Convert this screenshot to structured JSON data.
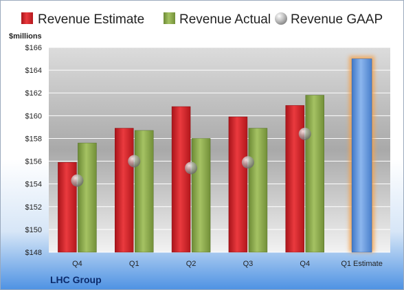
{
  "chart_data": {
    "type": "bar",
    "company": "LHC Group",
    "ylabel": "$millions",
    "categories": [
      "Q4",
      "Q1",
      "Q2",
      "Q3",
      "Q4",
      "Q1 Estimate"
    ],
    "ylim": [
      148,
      166
    ],
    "yticks": [
      "$148",
      "$150",
      "$152",
      "$154",
      "$156",
      "$158",
      "$160",
      "$162",
      "$164",
      "$166"
    ],
    "series": [
      {
        "name": "Revenue Estimate",
        "kind": "bar",
        "color": "#d9262b",
        "values": [
          155.9,
          158.9,
          160.8,
          159.9,
          160.9,
          null
        ]
      },
      {
        "name": "Revenue Actual",
        "kind": "bar",
        "color": "#8fac4f",
        "values": [
          157.6,
          158.7,
          158.0,
          158.9,
          161.8,
          null
        ]
      },
      {
        "name": "Revenue GAAP",
        "kind": "marker",
        "color": "#9aa0a6",
        "values": [
          154.3,
          156.0,
          155.4,
          155.9,
          158.4,
          null
        ]
      },
      {
        "name": "Q1 Estimate",
        "kind": "highlight-bar",
        "color": "#5f95dd",
        "values": [
          null,
          null,
          null,
          null,
          null,
          165.0
        ]
      }
    ],
    "grid": true,
    "legend": "top"
  }
}
